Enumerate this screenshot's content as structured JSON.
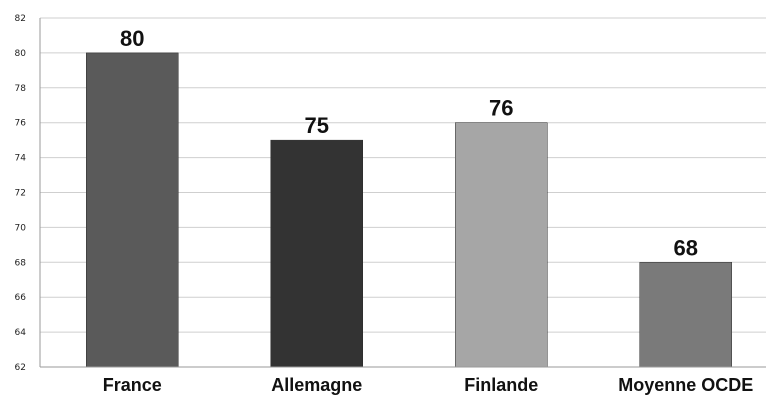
{
  "chart_data": {
    "type": "bar",
    "categories": [
      "France",
      "Allemagne",
      "Finlande",
      "Moyenne OCDE"
    ],
    "values": [
      80,
      75,
      76,
      68
    ],
    "data_labels": [
      "80",
      "75",
      "76",
      "68"
    ],
    "ylim": [
      62,
      82
    ],
    "yticks": [
      62,
      64,
      66,
      68,
      70,
      72,
      74,
      76,
      78,
      80,
      82
    ],
    "grid": true,
    "colors": [
      "#5a5a5a",
      "#333333",
      "#a6a6a6",
      "#7a7a7a"
    ]
  }
}
